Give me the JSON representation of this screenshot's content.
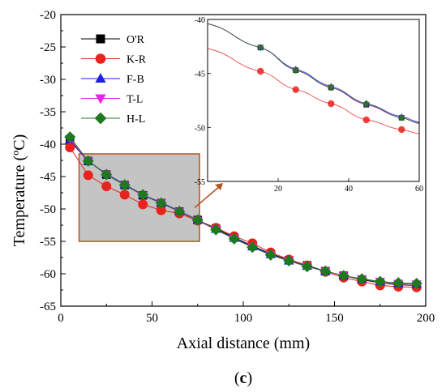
{
  "chart_data": [
    {
      "type": "line",
      "xlabel": "Axial distance (mm)",
      "ylabel": "Temperature (ºC)",
      "xlim": [
        0,
        200
      ],
      "ylim": [
        -65,
        -20
      ],
      "xticks": [
        0,
        50,
        100,
        150,
        200
      ],
      "yticks": [
        -65,
        -60,
        -55,
        -50,
        -45,
        -40,
        -35,
        -30,
        -25,
        -20
      ],
      "legend_position": "upper-left",
      "grid": false,
      "highlight_region": {
        "x": [
          10,
          76
        ],
        "y": [
          -55,
          -41.5
        ]
      },
      "x": [
        5,
        15,
        25,
        35,
        45,
        55,
        65,
        75,
        85,
        95,
        105,
        115,
        125,
        135,
        145,
        155,
        165,
        175,
        185,
        195
      ],
      "series": [
        {
          "name": "O'R",
          "marker": "square",
          "color": "#000000",
          "values": [
            -39.5,
            -42.6,
            -44.7,
            -46.3,
            -47.9,
            -49.1,
            -50.4,
            -51.7,
            -53.0,
            -54.4,
            -55.7,
            -56.9,
            -57.9,
            -58.7,
            -59.6,
            -60.3,
            -60.9,
            -61.4,
            -61.7,
            -61.8
          ]
        },
        {
          "name": "K-R",
          "marker": "circle",
          "color": "#e8221c",
          "values": [
            -40.5,
            -44.8,
            -46.5,
            -47.8,
            -49.3,
            -50.2,
            -50.7,
            -51.8,
            -52.9,
            -54.2,
            -55.3,
            -56.7,
            -57.8,
            -58.7,
            -59.7,
            -60.6,
            -61.2,
            -61.8,
            -62.0,
            -62.1
          ]
        },
        {
          "name": "F-B",
          "marker": "triangle-up",
          "color": "#1f1fe0",
          "values": [
            -39.3,
            -42.6,
            -44.6,
            -46.2,
            -47.8,
            -49.0,
            -50.3,
            -51.7,
            -53.1,
            -54.5,
            -55.8,
            -57.0,
            -58.0,
            -58.8,
            -59.6,
            -60.3,
            -60.8,
            -61.2,
            -61.5,
            -61.6
          ]
        },
        {
          "name": "T-L",
          "marker": "triangle-down",
          "color": "#ee22ee",
          "values": [
            -39.2,
            -42.6,
            -44.7,
            -46.3,
            -47.9,
            -49.1,
            -50.4,
            -51.8,
            -53.2,
            -54.6,
            -55.9,
            -57.1,
            -58.0,
            -58.9,
            -59.6,
            -60.3,
            -60.8,
            -61.2,
            -61.5,
            -61.6
          ]
        },
        {
          "name": "H-L",
          "marker": "diamond",
          "color": "#1e7a1e",
          "values": [
            -38.9,
            -42.6,
            -44.7,
            -46.3,
            -47.8,
            -49.1,
            -50.4,
            -51.7,
            -53.2,
            -54.6,
            -55.9,
            -57.1,
            -58.0,
            -58.9,
            -59.6,
            -60.3,
            -60.8,
            -61.2,
            -61.4,
            -61.5
          ]
        }
      ]
    },
    {
      "type": "line",
      "role": "inset",
      "xlim": [
        0,
        60
      ],
      "ylim": [
        -55,
        -40
      ],
      "xticks": [
        20,
        40,
        60
      ],
      "yticks": [
        -55,
        -50,
        -45,
        -40
      ],
      "x": [
        15,
        25,
        35,
        45,
        55
      ],
      "series": [
        {
          "name": "O'R",
          "marker": "square",
          "color": "#000000",
          "values": [
            -42.6,
            -44.7,
            -46.3,
            -47.9,
            -49.1
          ]
        },
        {
          "name": "K-R",
          "marker": "circle",
          "color": "#e8221c",
          "values": [
            -44.8,
            -46.5,
            -47.8,
            -49.3,
            -50.2
          ]
        },
        {
          "name": "F-B",
          "marker": "triangle-up",
          "color": "#1f1fe0",
          "values": [
            -42.6,
            -44.6,
            -46.2,
            -47.8,
            -49.0
          ]
        },
        {
          "name": "T-L",
          "marker": "triangle-down",
          "color": "#ee22ee",
          "values": [
            -42.6,
            -44.7,
            -46.3,
            -47.9,
            -49.1
          ]
        },
        {
          "name": "H-L",
          "marker": "diamond",
          "color": "#1e7a1e",
          "values": [
            -42.6,
            -44.7,
            -46.3,
            -47.8,
            -49.1
          ]
        }
      ],
      "inset_curve_start": {
        "x": 0,
        "values": [
          -40.4,
          -42.7,
          -40.4,
          -40.4,
          -40.4
        ]
      }
    }
  ],
  "caption": {
    "prefix": "(",
    "letter": "c",
    "suffix": ")"
  }
}
